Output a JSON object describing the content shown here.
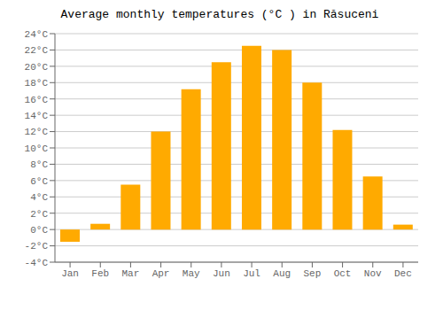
{
  "chart_data": {
    "type": "bar",
    "title": "Average monthly temperatures (°C ) in Răsuceni",
    "categories": [
      "Jan",
      "Feb",
      "Mar",
      "Apr",
      "May",
      "Jun",
      "Jul",
      "Aug",
      "Sep",
      "Oct",
      "Nov",
      "Dec"
    ],
    "values": [
      -1.5,
      0.7,
      5.5,
      12.0,
      17.2,
      20.5,
      22.5,
      22.0,
      18.0,
      12.2,
      6.5,
      0.6
    ],
    "color": "#FFAA00",
    "ylim": [
      -4,
      24
    ],
    "yticks": [
      {
        "value": -4,
        "label": "-4°C"
      },
      {
        "value": -2,
        "label": "-2°C"
      },
      {
        "value": 0,
        "label": "0°C"
      },
      {
        "value": 2,
        "label": "2°C"
      },
      {
        "value": 4,
        "label": "4°C"
      },
      {
        "value": 6,
        "label": "6°C"
      },
      {
        "value": 8,
        "label": "8°C"
      },
      {
        "value": 10,
        "label": "10°C"
      },
      {
        "value": 12,
        "label": "12°C"
      },
      {
        "value": 14,
        "label": "14°C"
      },
      {
        "value": 16,
        "label": "16°C"
      },
      {
        "value": 18,
        "label": "18°C"
      },
      {
        "value": 20,
        "label": "20°C"
      },
      {
        "value": 22,
        "label": "22°C"
      },
      {
        "value": 24,
        "label": "24°C"
      }
    ],
    "grid": true
  }
}
